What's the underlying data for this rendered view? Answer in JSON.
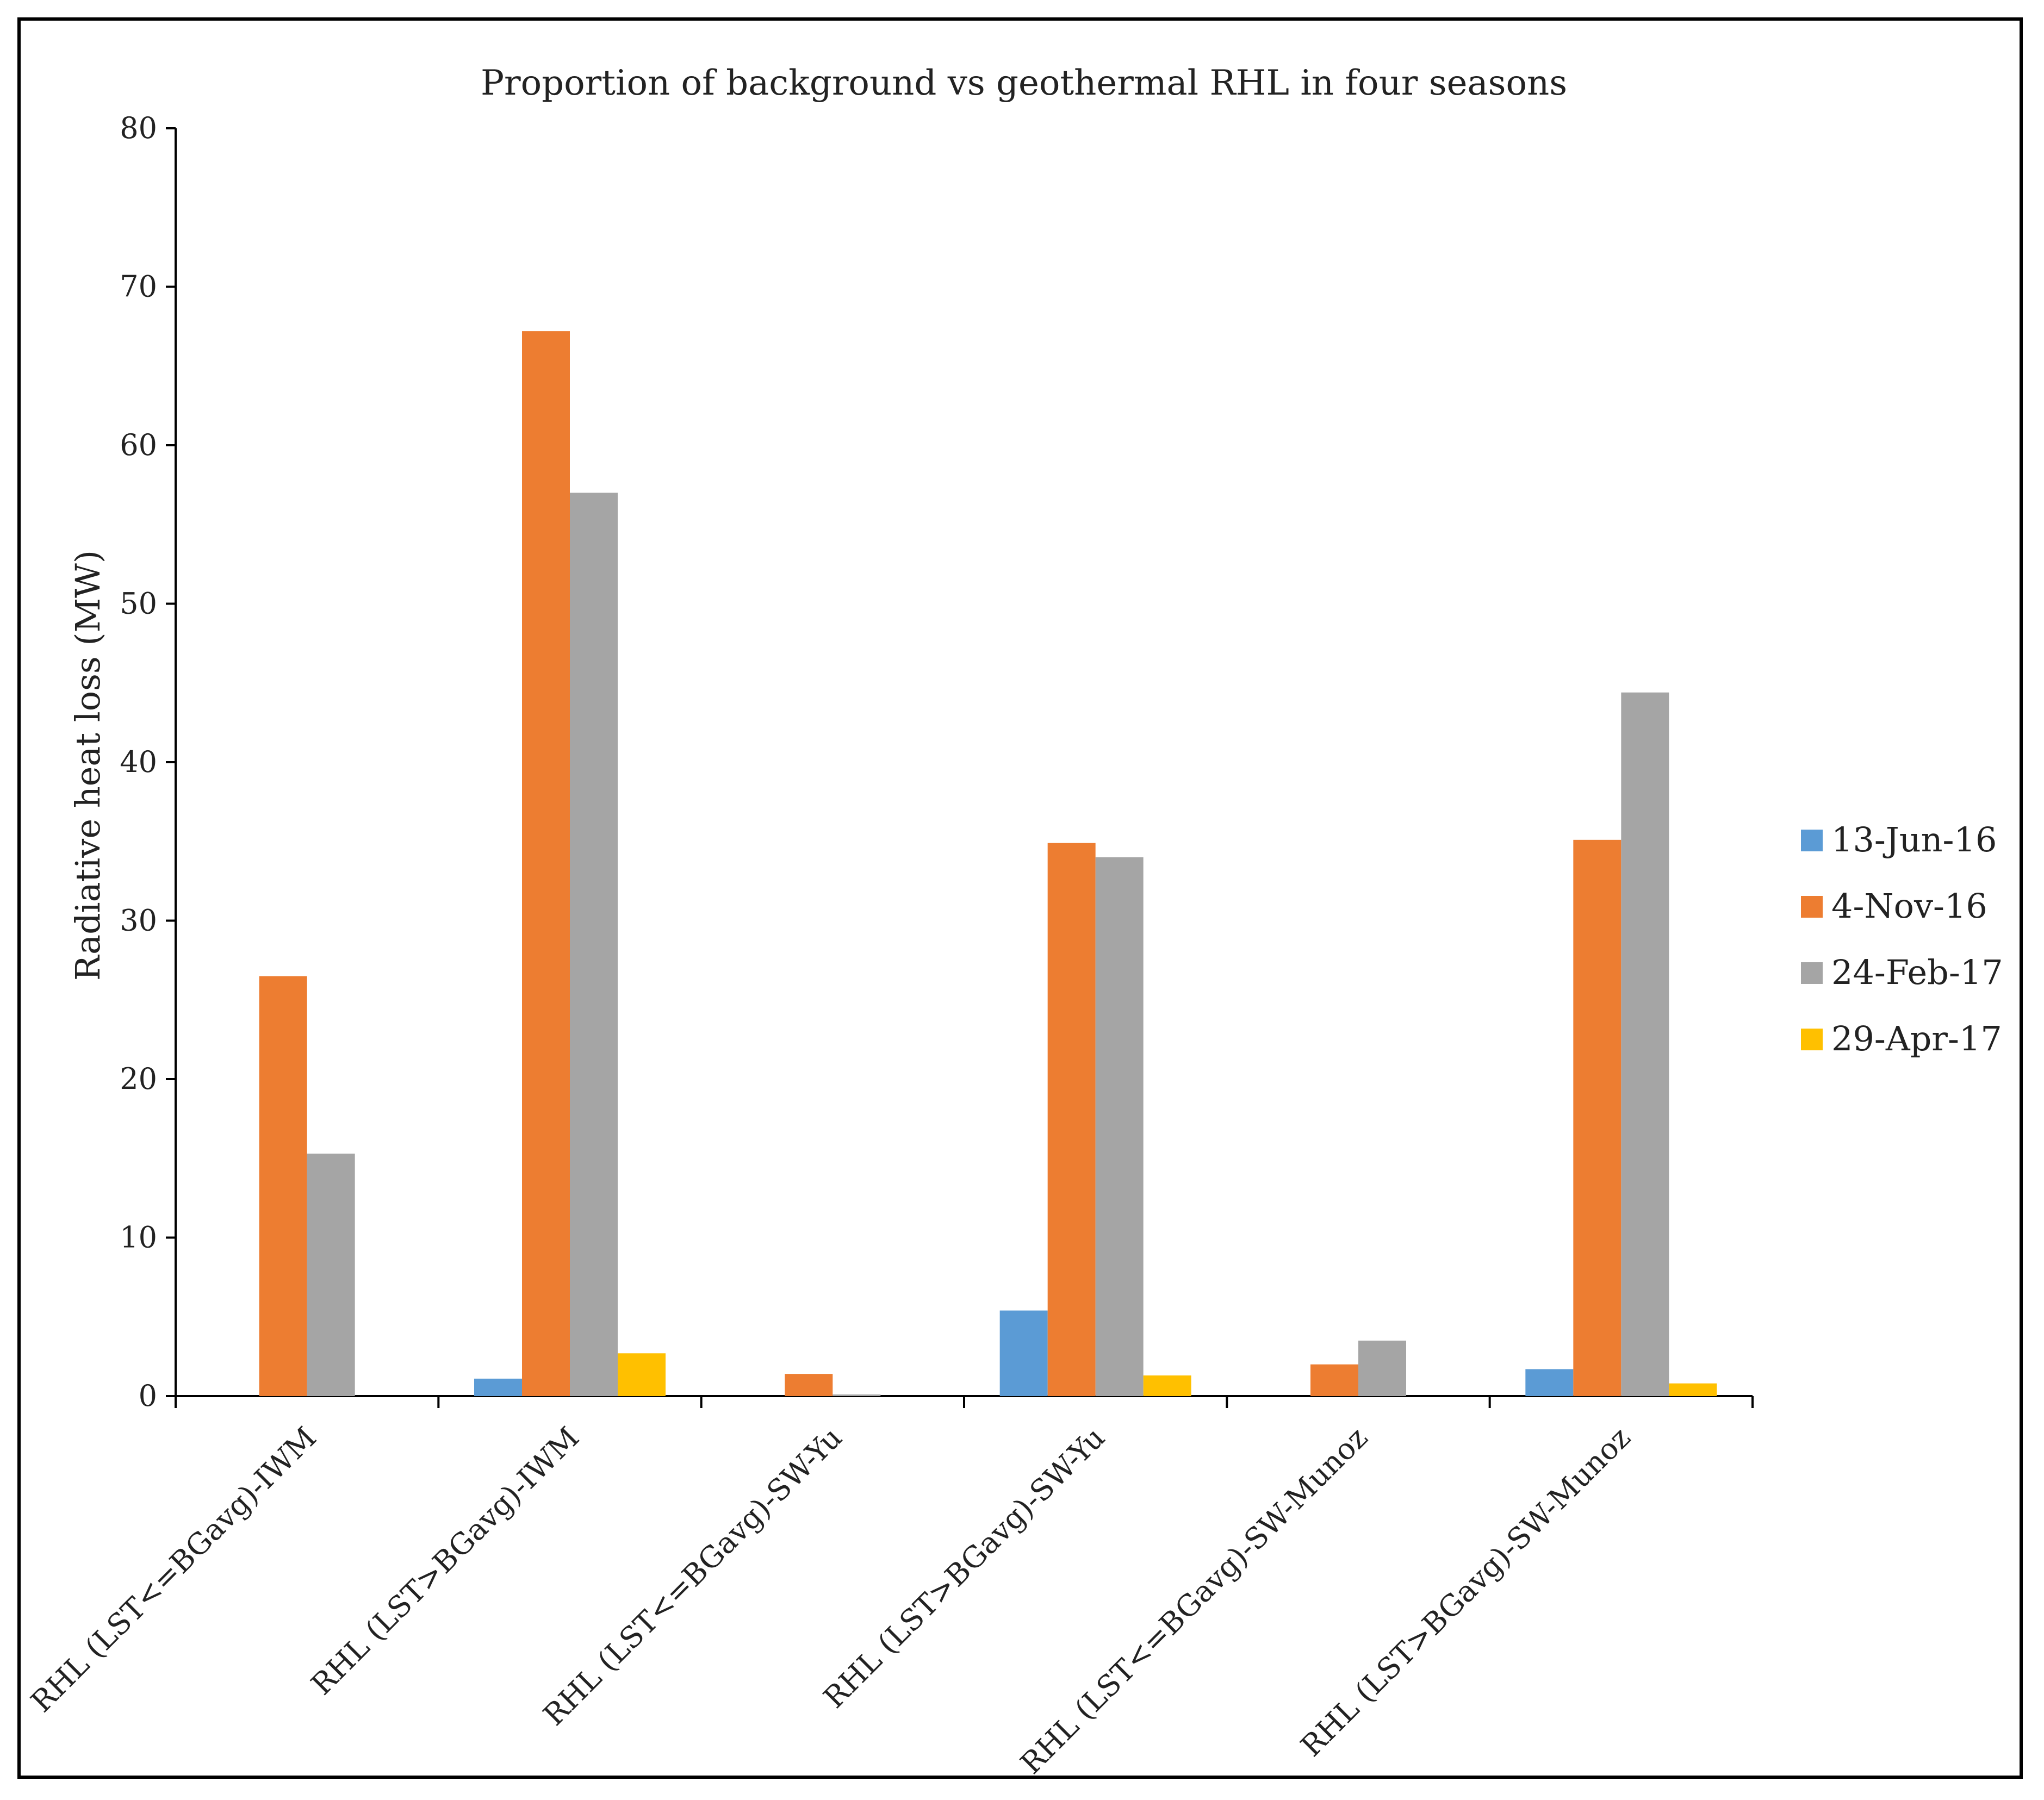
{
  "chart_data": {
    "type": "bar",
    "title": "Proportion of background vs geothermal RHL in four seasons",
    "xlabel": "",
    "ylabel": "Radiative heat loss (MW)",
    "ylim": [
      0,
      80
    ],
    "yticks": [
      0,
      10,
      20,
      30,
      40,
      50,
      60,
      70,
      80
    ],
    "grid": false,
    "legend_position": "right",
    "categories": [
      "RHL (LST<=BGavg)-IWM",
      "RHL (LST>BGavg)-IWM",
      "RHL (LST<=BGavg)-SW-Yu",
      "RHL (LST>BGavg)-SW-Yu",
      "RHL (LST<=BGavg)-SW-Munoz",
      "RHL (LST>BGavg)-SW-Munoz"
    ],
    "series": [
      {
        "name": "13-Jun-16",
        "color": "#5b9bd5",
        "values": [
          0,
          1.1,
          0,
          5.4,
          0,
          1.7
        ]
      },
      {
        "name": "4-Nov-16",
        "color": "#ed7d31",
        "values": [
          26.5,
          67.2,
          1.4,
          34.9,
          2.0,
          35.1
        ]
      },
      {
        "name": "24-Feb-17",
        "color": "#a5a5a5",
        "values": [
          15.3,
          57.0,
          0.1,
          34.0,
          3.5,
          44.4
        ]
      },
      {
        "name": "29-Apr-17",
        "color": "#ffc000",
        "values": [
          0,
          2.7,
          0,
          1.3,
          0,
          0.8
        ]
      }
    ]
  }
}
